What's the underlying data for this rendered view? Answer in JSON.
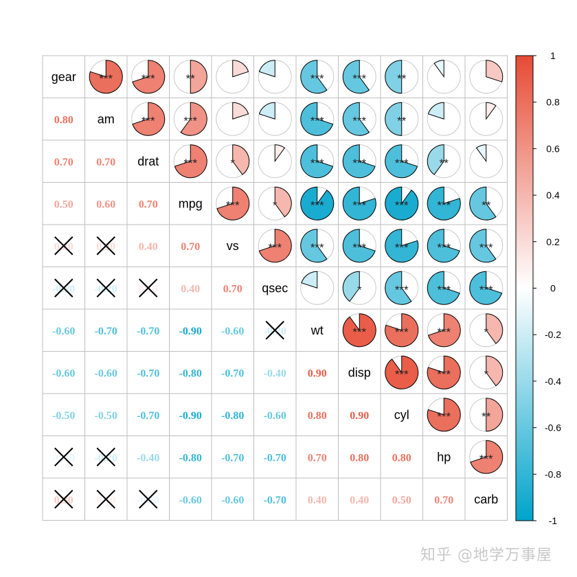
{
  "chart_data": {
    "type": "heatmap",
    "subtype": "correlation-matrix (upper: pie, lower: number, diag: label)",
    "title": "",
    "variables": [
      "gear",
      "am",
      "drat",
      "mpg",
      "vs",
      "qsec",
      "wt",
      "disp",
      "cyl",
      "hp",
      "carb"
    ],
    "matrix": [
      [
        1.0,
        0.8,
        0.7,
        0.5,
        0.2,
        -0.2,
        -0.6,
        -0.6,
        -0.5,
        -0.1,
        0.3
      ],
      [
        0.8,
        1.0,
        0.7,
        0.6,
        0.2,
        -0.2,
        -0.7,
        -0.6,
        -0.5,
        -0.2,
        0.1
      ],
      [
        0.7,
        0.7,
        1.0,
        0.7,
        0.4,
        0.1,
        -0.7,
        -0.7,
        -0.7,
        -0.4,
        -0.1
      ],
      [
        0.5,
        0.6,
        0.7,
        1.0,
        0.7,
        0.4,
        -0.9,
        -0.8,
        -0.9,
        -0.8,
        -0.6
      ],
      [
        0.2,
        0.2,
        0.4,
        0.7,
        1.0,
        0.7,
        -0.6,
        -0.7,
        -0.8,
        -0.7,
        -0.6
      ],
      [
        -0.2,
        -0.2,
        0.1,
        0.4,
        0.7,
        1.0,
        -0.2,
        -0.4,
        -0.6,
        -0.7,
        -0.7
      ],
      [
        -0.6,
        -0.7,
        -0.7,
        -0.9,
        -0.6,
        -0.2,
        1.0,
        0.9,
        0.8,
        0.7,
        0.4
      ],
      [
        -0.6,
        -0.6,
        -0.7,
        -0.8,
        -0.7,
        -0.4,
        0.9,
        1.0,
        0.9,
        0.8,
        0.4
      ],
      [
        -0.5,
        -0.5,
        -0.7,
        -0.9,
        -0.8,
        -0.6,
        0.8,
        0.9,
        1.0,
        0.8,
        0.5
      ],
      [
        -0.1,
        -0.2,
        -0.4,
        -0.8,
        -0.7,
        -0.7,
        0.7,
        0.8,
        0.8,
        1.0,
        0.7
      ],
      [
        0.3,
        0.1,
        -0.1,
        -0.6,
        -0.6,
        -0.7,
        0.4,
        0.4,
        0.5,
        0.7,
        1.0
      ]
    ],
    "significance": [
      [
        "",
        "***",
        "***",
        "**",
        "",
        "",
        "***",
        "***",
        "**",
        "",
        ""
      ],
      [
        "***",
        "",
        "***",
        "***",
        "",
        "",
        "***",
        "***",
        "**",
        "",
        ""
      ],
      [
        "***",
        "***",
        "",
        "***",
        "*",
        "",
        "***",
        "***",
        "***",
        "**",
        ""
      ],
      [
        "**",
        "***",
        "***",
        "",
        "***",
        "*",
        "***",
        "***",
        "***",
        "***",
        "**"
      ],
      [
        "",
        "",
        "*",
        "***",
        "",
        "***",
        "***",
        "***",
        "***",
        "***",
        "***"
      ],
      [
        "",
        "",
        "",
        "*",
        "***",
        "",
        "",
        "*",
        "***",
        "***",
        "***"
      ],
      [
        "***",
        "***",
        "***",
        "***",
        "***",
        "",
        "",
        "***",
        "***",
        "***",
        "*"
      ],
      [
        "***",
        "***",
        "***",
        "***",
        "***",
        "*",
        "***",
        "",
        "***",
        "***",
        "*"
      ],
      [
        "**",
        "**",
        "***",
        "***",
        "***",
        "***",
        "***",
        "***",
        "",
        "***",
        "**"
      ],
      [
        "",
        "",
        "**",
        "***",
        "***",
        "***",
        "***",
        "***",
        "***",
        "",
        "***"
      ],
      [
        "",
        "",
        "",
        "**",
        "***",
        "***",
        "*",
        "*",
        "**",
        "***",
        ""
      ]
    ],
    "crossed_out_lower": [
      [
        4,
        0
      ],
      [
        4,
        1
      ],
      [
        5,
        0
      ],
      [
        5,
        1
      ],
      [
        5,
        2
      ],
      [
        6,
        5
      ],
      [
        9,
        0
      ],
      [
        9,
        1
      ],
      [
        10,
        0
      ],
      [
        10,
        1
      ],
      [
        10,
        2
      ]
    ],
    "lower_display_format": "0.00",
    "colorbar": {
      "min": -1,
      "max": 1,
      "ticks": [
        "1",
        "0.8",
        "0.6",
        "0.4",
        "0.2",
        "0",
        "-0.2",
        "-0.4",
        "-0.6",
        "-0.8",
        "-1"
      ],
      "colors": {
        "neg": "#00A3CB",
        "mid": "#FFFFFF",
        "pos": "#E64B35"
      },
      "position": "right"
    },
    "xlabel": "",
    "ylabel": "",
    "grid": true
  },
  "watermark": "知乎 @地学万事屋"
}
